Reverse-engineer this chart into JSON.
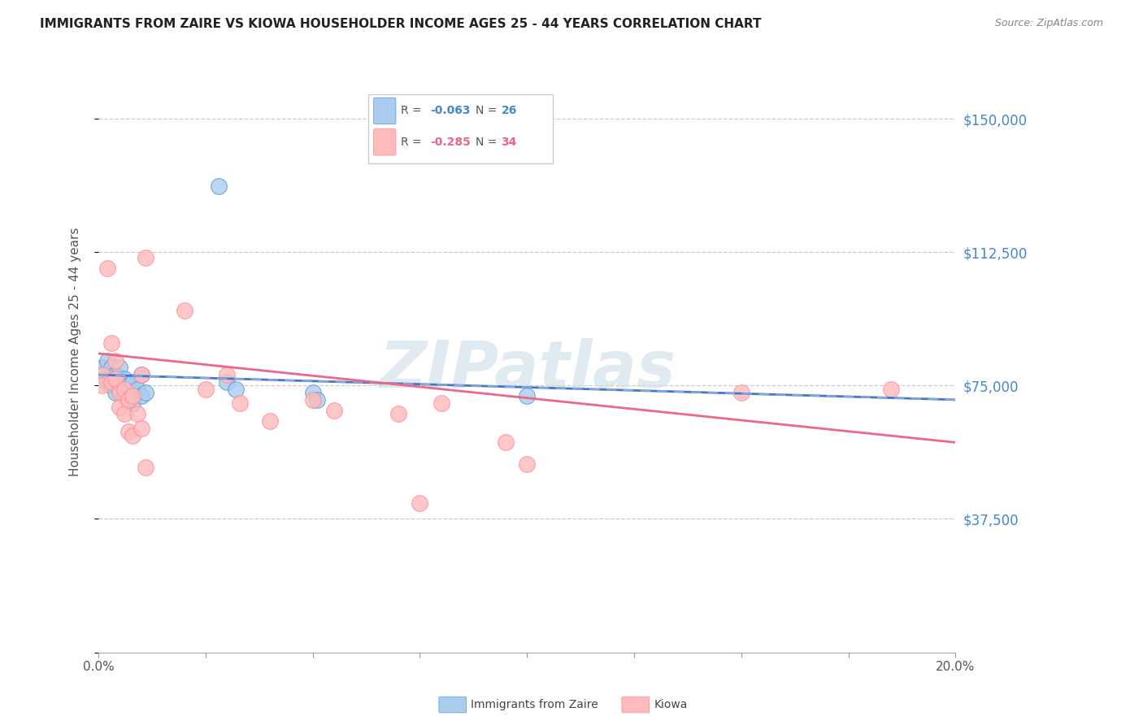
{
  "title": "IMMIGRANTS FROM ZAIRE VS KIOWA HOUSEHOLDER INCOME AGES 25 - 44 YEARS CORRELATION CHART",
  "source": "Source: ZipAtlas.com",
  "ylabel": "Householder Income Ages 25 - 44 years",
  "xlim": [
    0.0,
    0.2
  ],
  "ylim": [
    0,
    168750
  ],
  "yticks": [
    0,
    37500,
    75000,
    112500,
    150000
  ],
  "ytick_labels": [
    "",
    "$37,500",
    "$75,000",
    "$112,500",
    "$150,000"
  ],
  "xtick_positions": [
    0.0,
    0.025,
    0.05,
    0.075,
    0.1,
    0.125,
    0.15,
    0.175,
    0.2
  ],
  "xtick_labels": [
    "0.0%",
    "",
    "",
    "",
    "",
    "",
    "",
    "",
    "20.0%"
  ],
  "legend_label_blue": "Immigrants from Zaire",
  "legend_label_pink": "Kiowa",
  "blue_color": "#AACCEE",
  "blue_edge": "#5599CC",
  "pink_color": "#FFBBBB",
  "pink_edge": "#FF8899",
  "trend_blue_solid": "#4477CC",
  "trend_blue_dash": "#88AADD",
  "trend_pink": "#EE6688",
  "watermark": "ZIPatlas",
  "watermark_color": "#CCDDE8",
  "blue_scatter_x": [
    0.001,
    0.001,
    0.002,
    0.002,
    0.003,
    0.003,
    0.004,
    0.004,
    0.005,
    0.005,
    0.006,
    0.006,
    0.007,
    0.007,
    0.008,
    0.008,
    0.009,
    0.01,
    0.01,
    0.011,
    0.03,
    0.032,
    0.05,
    0.051,
    0.1,
    0.028
  ],
  "blue_scatter_y": [
    80000,
    78000,
    82000,
    76000,
    80000,
    75000,
    78000,
    73000,
    80000,
    74000,
    77000,
    72000,
    75000,
    71000,
    76000,
    70000,
    74000,
    78000,
    72000,
    73000,
    76000,
    74000,
    73000,
    71000,
    72000,
    131000
  ],
  "pink_scatter_x": [
    0.001,
    0.001,
    0.002,
    0.003,
    0.003,
    0.004,
    0.004,
    0.005,
    0.005,
    0.006,
    0.006,
    0.007,
    0.007,
    0.008,
    0.008,
    0.009,
    0.01,
    0.01,
    0.011,
    0.011,
    0.02,
    0.025,
    0.03,
    0.033,
    0.04,
    0.05,
    0.055,
    0.07,
    0.075,
    0.08,
    0.095,
    0.1,
    0.15,
    0.185
  ],
  "pink_scatter_y": [
    78000,
    75000,
    108000,
    76000,
    87000,
    82000,
    77000,
    73000,
    69000,
    67000,
    74000,
    71000,
    62000,
    72000,
    61000,
    67000,
    78000,
    63000,
    111000,
    52000,
    96000,
    74000,
    78000,
    70000,
    65000,
    71000,
    68000,
    67000,
    42000,
    70000,
    59000,
    53000,
    73000,
    74000
  ],
  "blue_trend_x": [
    0.0,
    0.2
  ],
  "blue_trend_y": [
    78000,
    71000
  ],
  "pink_trend_x": [
    0.0,
    0.2
  ],
  "pink_trend_y": [
    84000,
    59000
  ]
}
